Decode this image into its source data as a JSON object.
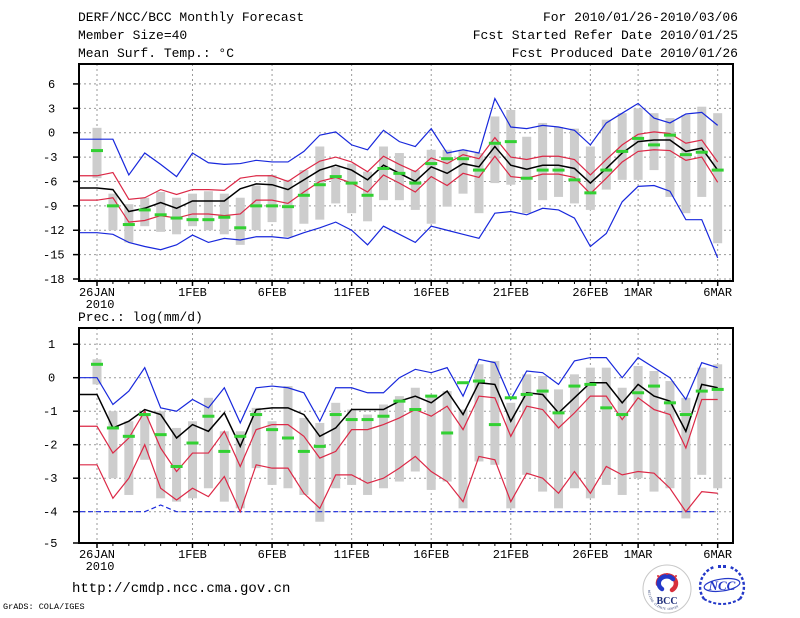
{
  "header": {
    "title": "DERF/NCC/BCC Monthly Forecast",
    "member_size": "Member Size=40",
    "for_range": "For 2010/01/26-2010/03/06",
    "refer_date": "Fcst Started Refer Date 2010/01/25",
    "produced_date": "Fcst Produced Date 2010/01/26"
  },
  "footer": {
    "url": "http://cmdp.ncc.cma.gov.cn",
    "credit": "GrADS: COLA/IGES",
    "logos": {
      "bcc": "BCC",
      "bcc_ring_bottom": "BEIJING CLIMATE CENTER",
      "ncc": "NCC"
    }
  },
  "colors": {
    "max_min": "#1828dc",
    "quartile": "#dc2846",
    "mean": "#000000",
    "obs": "#32d032",
    "spread": "#cdcdcd",
    "grid": "#999999",
    "frame": "#000000"
  },
  "chart_data": [
    {
      "type": "line",
      "title": "Mean Surf. Temp.: °C",
      "n_days": 40,
      "xticks": {
        "days": [
          0,
          6,
          11,
          16,
          21,
          26,
          31,
          34,
          39
        ],
        "labels": [
          "26JAN",
          "1FEB",
          "6FEB",
          "11FEB",
          "16FEB",
          "21FEB",
          "26FEB",
          "1MAR",
          "6MAR"
        ],
        "year_sublabel": "2010"
      },
      "yticks": [
        6,
        3,
        0,
        -3,
        -6,
        -9,
        -12,
        -15,
        -18
      ],
      "ylim": [
        -18.2,
        8.4
      ],
      "series": [
        {
          "name": "ensemble-max",
          "color_role": "max_min",
          "dashed": false,
          "values": [
            -0.8,
            -0.8,
            -5.2,
            -2.5,
            -3.9,
            -5.4,
            -2.5,
            -3.7,
            -3.9,
            -3.8,
            -3.4,
            -3.6,
            -3.6,
            -2.3,
            -0.3,
            0.1,
            -1.5,
            -2.1,
            0.3,
            -1.1,
            -1.7,
            0.5,
            -2.5,
            -2.1,
            -2.5,
            4.2,
            0.7,
            0.5,
            0.9,
            0.7,
            0.3,
            -1.5,
            1.2,
            2.4,
            3.6,
            1.8,
            1.2,
            2.3,
            2.5,
            0.9
          ]
        },
        {
          "name": "ensemble-upper",
          "color_role": "quartile",
          "dashed": false,
          "values": [
            -5.3,
            -4.9,
            -8.2,
            -8.0,
            -7.0,
            -7.6,
            -7.0,
            -7.0,
            -7.1,
            -5.6,
            -5.3,
            -5.3,
            -6.0,
            -4.7,
            -3.5,
            -3.0,
            -3.6,
            -4.8,
            -2.9,
            -3.9,
            -4.8,
            -3.1,
            -3.8,
            -2.7,
            -3.2,
            -0.6,
            -3.0,
            -3.3,
            -2.9,
            -2.9,
            -3.3,
            -5.2,
            -3.3,
            -1.5,
            -0.2,
            0.1,
            -0.1,
            -1.3,
            -0.9,
            -3.6
          ]
        },
        {
          "name": "ensemble-lower",
          "color_role": "quartile",
          "dashed": false,
          "values": [
            -8.3,
            -8.0,
            -11.0,
            -10.8,
            -10.2,
            -10.5,
            -10.0,
            -10.0,
            -10.2,
            -10.0,
            -8.3,
            -8.3,
            -8.7,
            -7.3,
            -6.0,
            -5.5,
            -6.2,
            -7.3,
            -5.2,
            -6.2,
            -7.3,
            -5.4,
            -6.5,
            -5.0,
            -5.5,
            -2.9,
            -5.4,
            -5.6,
            -5.1,
            -5.1,
            -5.5,
            -7.5,
            -5.6,
            -3.6,
            -2.3,
            -2.1,
            -2.2,
            -3.4,
            -3.0,
            -6.1
          ]
        },
        {
          "name": "ensemble-min",
          "color_role": "max_min",
          "dashed": false,
          "values": [
            -12.3,
            -12.5,
            -13.5,
            -14.0,
            -14.4,
            -13.8,
            -12.6,
            -13.5,
            -13.0,
            -13.2,
            -12.8,
            -12.8,
            -13.0,
            -12.3,
            -11.7,
            -11.0,
            -12.0,
            -13.8,
            -11.5,
            -12.5,
            -13.5,
            -11.5,
            -12.0,
            -12.5,
            -13.0,
            -9.9,
            -9.7,
            -10.1,
            -9.3,
            -9.5,
            -10.5,
            -14.0,
            -12.4,
            -8.5,
            -6.6,
            -6.5,
            -7.2,
            -10.7,
            -10.7,
            -15.4
          ]
        },
        {
          "name": "ensemble-mean",
          "color_role": "mean",
          "dashed": false,
          "values": [
            -6.8,
            -7.0,
            -9.7,
            -9.3,
            -8.6,
            -9.3,
            -8.4,
            -8.4,
            -8.4,
            -6.9,
            -6.3,
            -6.4,
            -7.0,
            -5.8,
            -4.6,
            -4.0,
            -4.6,
            -5.8,
            -4.0,
            -5.0,
            -6.0,
            -4.2,
            -5.0,
            -3.8,
            -4.2,
            -1.7,
            -4.0,
            -4.5,
            -4.0,
            -4.0,
            -4.4,
            -6.2,
            -4.4,
            -2.5,
            -1.1,
            -0.9,
            -0.9,
            -2.3,
            -1.9,
            -4.6
          ]
        }
      ],
      "obs_dashes": [
        -2.2,
        -9.0,
        -11.3,
        -9.5,
        -10.1,
        -10.5,
        -10.7,
        -10.7,
        -10.4,
        -11.7,
        -9.0,
        -9.0,
        -9.1,
        -7.7,
        -6.4,
        -5.4,
        -6.2,
        -7.7,
        -4.4,
        -5.0,
        -6.2,
        -3.8,
        -3.2,
        -3.2,
        -4.6,
        -1.3,
        -1.1,
        -5.6,
        -4.6,
        -4.6,
        -5.8,
        -7.4,
        -4.6,
        -2.3,
        -0.7,
        -1.5,
        -0.3,
        -2.7,
        -2.4,
        -4.6
      ],
      "spread_low": [
        -5.6,
        -12.0,
        -13.5,
        -11.5,
        -12.2,
        -12.5,
        -11.5,
        -12.0,
        -12.5,
        -13.8,
        -12.0,
        -11.0,
        -12.8,
        -11.2,
        -10.7,
        -8.7,
        -9.9,
        -10.9,
        -8.3,
        -8.3,
        -9.5,
        -11.2,
        -9.1,
        -7.5,
        -9.9,
        -6.2,
        -6.4,
        -9.9,
        -8.3,
        -7.9,
        -8.7,
        -9.5,
        -7.0,
        -5.8,
        -5.8,
        -4.6,
        -7.9,
        -9.9,
        -7.9,
        -13.6
      ],
      "spread_high": [
        0.6,
        -7.5,
        -8.8,
        -8.0,
        -7.3,
        -8.0,
        -7.5,
        -7.2,
        -7.5,
        -8.0,
        -6.5,
        -5.2,
        -5.8,
        -4.6,
        -1.7,
        -4.2,
        -3.8,
        -4.8,
        -1.7,
        -2.5,
        -4.6,
        -2.1,
        -2.1,
        -2.1,
        -2.5,
        2.0,
        2.8,
        -0.5,
        1.2,
        0.7,
        0.5,
        -1.7,
        1.6,
        2.4,
        3.0,
        2.4,
        1.8,
        2.2,
        3.2,
        2.4
      ]
    },
    {
      "type": "line",
      "title": "Prec.: log(mm/d)",
      "n_days": 40,
      "xticks": {
        "days": [
          0,
          6,
          11,
          16,
          21,
          26,
          31,
          34,
          39
        ],
        "labels": [
          "26JAN",
          "1FEB",
          "6FEB",
          "11FEB",
          "16FEB",
          "21FEB",
          "26FEB",
          "1MAR",
          "6MAR"
        ],
        "year_sublabel": "2010"
      },
      "yticks": [
        1,
        0,
        -1,
        -2,
        -3,
        -4,
        -5
      ],
      "ylim": [
        -5.0,
        1.47
      ],
      "series": [
        {
          "name": "ensemble-max",
          "color_role": "max_min",
          "dashed": false,
          "values": [
            0.0,
            -0.8,
            -0.4,
            0.3,
            -0.9,
            -1.0,
            -0.65,
            -0.9,
            -0.3,
            -1.35,
            -0.3,
            -0.25,
            -0.3,
            -0.45,
            -1.3,
            -0.3,
            -0.3,
            -0.45,
            -0.45,
            0.0,
            0.25,
            0.15,
            0.3,
            -0.55,
            0.55,
            0.45,
            -0.65,
            0.2,
            0.15,
            -0.2,
            0.5,
            0.6,
            0.6,
            0.0,
            0.6,
            0.3,
            0.0,
            -0.65,
            0.45,
            0.3
          ]
        },
        {
          "name": "ensemble-upper",
          "color_role": "quartile",
          "dashed": false,
          "values": [
            -1.45,
            -2.25,
            -1.8,
            -1.0,
            -2.1,
            -2.8,
            -2.25,
            -2.25,
            -1.6,
            -2.65,
            -1.55,
            -1.4,
            -1.4,
            -1.75,
            -2.4,
            -2.2,
            -1.55,
            -1.55,
            -1.4,
            -1.2,
            -0.95,
            -1.15,
            -0.85,
            -1.55,
            -0.55,
            -0.6,
            -1.75,
            -0.85,
            -0.95,
            -1.5,
            -1.05,
            -0.55,
            -0.55,
            -1.25,
            -0.6,
            -0.95,
            -1.1,
            -2.1,
            -0.65,
            -0.65
          ]
        },
        {
          "name": "ensemble-lower",
          "color_role": "quartile",
          "dashed": false,
          "values": [
            -2.6,
            -3.6,
            -3.0,
            -2.0,
            -3.3,
            -3.65,
            -3.3,
            -3.55,
            -2.95,
            -4.0,
            -2.6,
            -2.7,
            -2.7,
            -3.45,
            -3.9,
            -2.9,
            -2.9,
            -3.15,
            -3.0,
            -2.7,
            -2.35,
            -2.8,
            -3.1,
            -3.7,
            -2.35,
            -2.45,
            -3.7,
            -2.85,
            -3.0,
            -3.45,
            -2.8,
            -3.45,
            -2.65,
            -2.9,
            -2.8,
            -2.85,
            -3.3,
            -4.0,
            -3.4,
            -3.45
          ]
        },
        {
          "name": "ensemble-min",
          "color_role": "max_min",
          "dashed": true,
          "values": [
            -4.0,
            -4.0,
            -4.0,
            -4.0,
            -3.8,
            -4.0,
            -4.0,
            -4.0,
            -4.0,
            -4.0,
            -4.0,
            -4.0,
            -4.0,
            -4.0,
            -4.0,
            -4.0,
            -4.0,
            -4.0,
            -4.0,
            -4.0,
            -4.0,
            -4.0,
            -4.0,
            -4.0,
            -4.0,
            -4.0,
            -4.0,
            -4.0,
            -4.0,
            -4.0,
            -4.0,
            -4.0,
            -4.0,
            -4.0,
            -4.0,
            -4.0,
            -4.0,
            -4.0,
            -4.0,
            -4.0
          ]
        },
        {
          "name": "ensemble-mean",
          "color_role": "mean",
          "dashed": false,
          "values": [
            -0.5,
            -1.5,
            -1.3,
            -0.95,
            -1.1,
            -1.8,
            -1.4,
            -1.6,
            -1.05,
            -2.05,
            -0.95,
            -0.9,
            -0.9,
            -1.1,
            -1.75,
            -1.5,
            -0.95,
            -0.95,
            -0.95,
            -0.7,
            -0.55,
            -0.75,
            -0.4,
            -1.1,
            -0.15,
            -0.2,
            -1.3,
            -0.45,
            -0.5,
            -1.05,
            -0.6,
            -0.15,
            -0.15,
            -0.75,
            -0.2,
            -0.55,
            -0.7,
            -1.6,
            -0.2,
            -0.3
          ]
        }
      ],
      "obs_dashes": [
        0.4,
        -1.5,
        -1.75,
        -1.1,
        -1.7,
        -2.65,
        -1.95,
        -1.15,
        -2.2,
        -1.75,
        -1.1,
        -1.55,
        -1.8,
        -2.2,
        -2.05,
        -1.1,
        -1.25,
        -1.25,
        -1.15,
        -0.7,
        -0.95,
        -0.55,
        -1.65,
        -0.15,
        -0.1,
        -1.4,
        -0.6,
        -0.5,
        -0.4,
        -1.05,
        -0.25,
        -0.2,
        -0.9,
        -1.1,
        -0.45,
        -0.25,
        -0.75,
        -1.1,
        -0.4,
        -0.35
      ],
      "spread_low": [
        -0.2,
        -3.0,
        -3.5,
        -2.45,
        -3.6,
        -3.7,
        -3.6,
        -3.3,
        -3.7,
        -3.9,
        -2.7,
        -3.2,
        -3.3,
        -3.5,
        -4.3,
        -3.3,
        -3.2,
        -3.5,
        -3.3,
        -3.1,
        -2.8,
        -3.35,
        -3.1,
        -3.9,
        -2.5,
        -2.6,
        -3.9,
        -2.9,
        -3.4,
        -3.9,
        -3.3,
        -3.6,
        -3.2,
        -3.5,
        -3.0,
        -3.4,
        -3.3,
        -4.2,
        -2.9,
        -3.3
      ],
      "spread_high": [
        0.55,
        -1.0,
        -1.3,
        -1.1,
        -1.0,
        -1.5,
        -1.3,
        -0.6,
        -1.6,
        -1.6,
        -0.9,
        -1.3,
        -0.25,
        -1.2,
        -1.35,
        -0.75,
        -0.95,
        -1.1,
        -0.8,
        -0.55,
        -0.3,
        -0.55,
        -0.4,
        -0.95,
        0.4,
        0.5,
        -0.75,
        0.1,
        0.05,
        -0.35,
        0.1,
        0.3,
        0.3,
        -0.3,
        0.35,
        0.2,
        -0.1,
        -0.6,
        0.3,
        0.4
      ]
    }
  ]
}
